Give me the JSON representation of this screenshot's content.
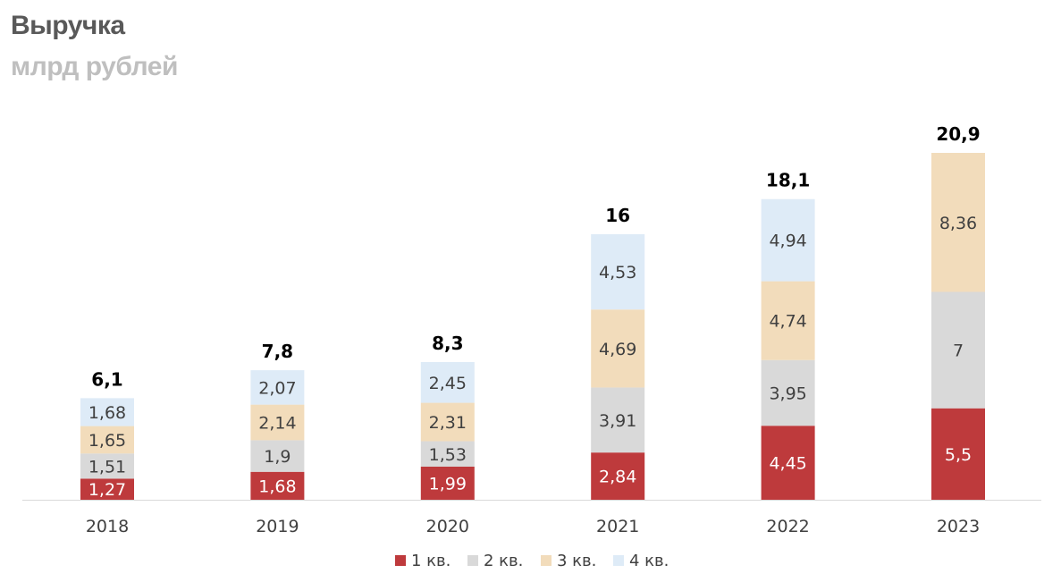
{
  "chart_data": {
    "type": "bar",
    "stacked": true,
    "title": "Выручка",
    "subtitle": "млрд рублей",
    "categories": [
      "2018",
      "2019",
      "2020",
      "2021",
      "2022",
      "2023"
    ],
    "series": [
      {
        "name": "1 кв.",
        "color": "#be3a3c",
        "label_color": "#ffffff",
        "values": [
          1.27,
          1.68,
          1.99,
          2.84,
          4.45,
          5.5
        ],
        "labels": [
          "1,27",
          "1,68",
          "1,99",
          "2,84",
          "4,45",
          "5,5"
        ]
      },
      {
        "name": "2 кв.",
        "color": "#d9d9d9",
        "label_color": "#404040",
        "values": [
          1.51,
          1.9,
          1.53,
          3.91,
          3.95,
          7
        ],
        "labels": [
          "1,51",
          "1,9",
          "1,53",
          "3,91",
          "3,95",
          "7"
        ]
      },
      {
        "name": "3 кв.",
        "color": "#f2dcbb",
        "label_color": "#404040",
        "values": [
          1.65,
          2.14,
          2.31,
          4.69,
          4.74,
          8.36
        ],
        "labels": [
          "1,65",
          "2,14",
          "2,31",
          "4,69",
          "4,74",
          "8,36"
        ]
      },
      {
        "name": "4 кв.",
        "color": "#deebf7",
        "label_color": "#404040",
        "values": [
          1.68,
          2.07,
          2.45,
          4.53,
          4.94,
          null
        ],
        "labels": [
          "1,68",
          "2,07",
          "2,45",
          "4,53",
          "4,94",
          null
        ]
      }
    ],
    "totals": [
      "6,1",
      "7,8",
      "8,3",
      "16",
      "18,1",
      "20,9"
    ],
    "ylim": [
      0,
      21
    ],
    "grid": false,
    "legend": "bottom-center"
  }
}
